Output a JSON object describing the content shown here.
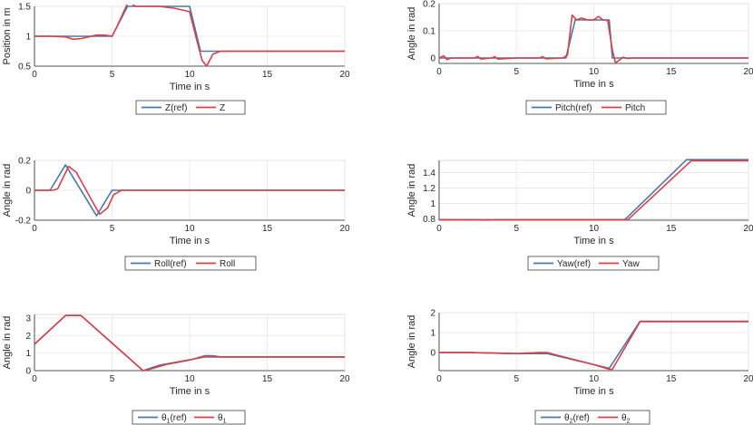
{
  "colors": {
    "ref": "#4a78a8",
    "actual": "#d9404a",
    "axis": "#262626",
    "grid": "#e6e6e6"
  },
  "chart_data": [
    {
      "type": "line",
      "xlabel": "Time in s",
      "ylabel": "Position in m",
      "xlim": [
        0,
        20
      ],
      "ylim": [
        0.5,
        1.5
      ],
      "xticks": [
        0,
        5,
        10,
        15,
        20
      ],
      "yticks": [
        0.5,
        1,
        1.5
      ],
      "xtick_labels": [
        "0",
        "5",
        "10",
        "15",
        "20"
      ],
      "ytick_labels": [
        "0.5",
        "1",
        "1.5"
      ],
      "series": [
        {
          "name": "Z(ref)",
          "legend": "Z(ref)",
          "sub": "",
          "x": [
            0,
            5,
            6,
            10,
            10.7,
            20
          ],
          "y": [
            1,
            1,
            1.5,
            1.5,
            0.75,
            0.75
          ]
        },
        {
          "name": "Z",
          "legend": "Z",
          "sub": "",
          "x": [
            0,
            1,
            2,
            2.5,
            3,
            4,
            4.5,
            5,
            5.3,
            6,
            6.2,
            6.5,
            7,
            8,
            9,
            10,
            10.4,
            10.8,
            11.1,
            11.5,
            12,
            20
          ],
          "y": [
            1,
            1,
            0.99,
            0.95,
            0.96,
            1.02,
            1.02,
            1,
            1.15,
            1.55,
            1.56,
            1.5,
            1.5,
            1.5,
            1.47,
            1.41,
            1.0,
            0.6,
            0.5,
            0.7,
            0.75,
            0.75
          ]
        }
      ]
    },
    {
      "type": "line",
      "xlabel": "Time in s",
      "ylabel": "Angle in rad",
      "xlim": [
        0,
        20
      ],
      "ylim": [
        -0.02,
        0.2
      ],
      "xticks": [
        0,
        5,
        10,
        15,
        20
      ],
      "yticks": [
        0,
        0.1,
        0.2
      ],
      "xtick_labels": [
        "0",
        "5",
        "10",
        "15",
        "20"
      ],
      "ytick_labels": [
        "0",
        "0.1",
        "0.2"
      ],
      "series": [
        {
          "name": "Pitch(ref)",
          "legend": "Pitch(ref)",
          "sub": "",
          "x": [
            0,
            8.2,
            8.8,
            11,
            11.2,
            20
          ],
          "y": [
            0,
            0,
            0.14,
            0.14,
            0,
            0
          ]
        },
        {
          "name": "Pitch",
          "legend": "Pitch",
          "sub": "",
          "x": [
            0,
            0.3,
            0.5,
            0.8,
            2.3,
            2.5,
            2.7,
            3.4,
            3.6,
            3.8,
            5,
            6.5,
            6.7,
            6.9,
            8,
            8.3,
            8.6,
            8.9,
            9.2,
            9.6,
            10,
            10.3,
            10.6,
            10.9,
            11.2,
            11.4,
            11.6,
            11.9,
            12.2,
            12.5,
            20
          ],
          "y": [
            0,
            0.008,
            -0.006,
            0,
            0,
            0.006,
            -0.004,
            0,
            0.005,
            -0.004,
            0,
            0,
            0.005,
            -0.003,
            0,
            0.01,
            0.158,
            0.14,
            0.147,
            0.14,
            0.14,
            0.153,
            0.14,
            0.138,
            0.03,
            -0.018,
            -0.01,
            0.003,
            -0.002,
            0,
            0
          ]
        }
      ]
    },
    {
      "type": "line",
      "xlabel": "Time in s",
      "ylabel": "Angle in rad",
      "xlim": [
        0,
        20
      ],
      "ylim": [
        -0.2,
        0.2
      ],
      "xticks": [
        0,
        5,
        10,
        15,
        20
      ],
      "yticks": [
        -0.2,
        0,
        0.2
      ],
      "xtick_labels": [
        "0",
        "5",
        "10",
        "15",
        "20"
      ],
      "ytick_labels": [
        "-0.2",
        "0",
        "0.2"
      ],
      "series": [
        {
          "name": "Roll(ref)",
          "legend": "Roll(ref)",
          "sub": "",
          "x": [
            0,
            1,
            2,
            4,
            5,
            20
          ],
          "y": [
            0,
            0,
            0.17,
            -0.17,
            0,
            0
          ]
        },
        {
          "name": "Roll",
          "legend": "Roll",
          "sub": "",
          "x": [
            0,
            1.2,
            1.5,
            2.2,
            2.7,
            3.6,
            4.2,
            4.7,
            5.1,
            5.6,
            20
          ],
          "y": [
            0,
            0,
            0.01,
            0.16,
            0.12,
            -0.05,
            -0.16,
            -0.12,
            -0.03,
            0,
            0
          ]
        }
      ]
    },
    {
      "type": "line",
      "xlabel": "Time in s",
      "ylabel": "Angle in rad",
      "xlim": [
        0,
        20
      ],
      "ylim": [
        0.78,
        1.56
      ],
      "xticks": [
        0,
        5,
        10,
        15,
        20
      ],
      "yticks": [
        0.8,
        1,
        1.2,
        1.4
      ],
      "xtick_labels": [
        "0",
        "5",
        "10",
        "15",
        "20"
      ],
      "ytick_labels": [
        "0.8",
        "1",
        "1.2",
        "1.4"
      ],
      "series": [
        {
          "name": "Yaw(ref)",
          "legend": "Yaw(ref)",
          "sub": "",
          "x": [
            0,
            12,
            16,
            20
          ],
          "y": [
            0.785,
            0.785,
            1.57,
            1.57
          ]
        },
        {
          "name": "Yaw",
          "legend": "Yaw",
          "sub": "",
          "x": [
            0,
            2,
            3,
            4,
            12.2,
            16.3,
            20
          ],
          "y": [
            0.785,
            0.785,
            0.782,
            0.785,
            0.785,
            1.555,
            1.555
          ]
        }
      ]
    },
    {
      "type": "line",
      "xlabel": "Time in s",
      "ylabel": "Angle in rad",
      "xlim": [
        0,
        20
      ],
      "ylim": [
        0,
        3.2
      ],
      "xticks": [
        0,
        5,
        10,
        15,
        20
      ],
      "yticks": [
        0,
        1,
        2,
        3
      ],
      "xtick_labels": [
        "0",
        "5",
        "10",
        "15",
        "20"
      ],
      "ytick_labels": [
        "0",
        "1",
        "2",
        "3"
      ],
      "series": [
        {
          "name": "theta1-ref",
          "legend": "θ",
          "sub": "1",
          "suffix": "(ref)",
          "x": [
            0,
            2,
            3,
            7,
            8,
            11,
            12,
            20
          ],
          "y": [
            1.5,
            3.14,
            3.14,
            0,
            0.3,
            0.78,
            0.78,
            0.78
          ]
        },
        {
          "name": "theta1",
          "legend": "θ",
          "sub": "1",
          "suffix": "",
          "x": [
            0,
            2,
            3,
            7,
            7.5,
            8.5,
            10,
            11,
            11.5,
            12,
            20
          ],
          "y": [
            1.5,
            3.14,
            3.14,
            0,
            0.1,
            0.35,
            0.6,
            0.85,
            0.85,
            0.78,
            0.78
          ]
        }
      ]
    },
    {
      "type": "line",
      "xlabel": "Time in s",
      "ylabel": "Angle in rad",
      "xlim": [
        0,
        20
      ],
      "ylim": [
        -0.9,
        2
      ],
      "xticks": [
        0,
        5,
        10,
        15,
        20
      ],
      "yticks": [
        0,
        1,
        2
      ],
      "xtick_labels": [
        "0",
        "5",
        "10",
        "15",
        "20"
      ],
      "ytick_labels": [
        "0",
        "1",
        "2"
      ],
      "series": [
        {
          "name": "theta2-ref",
          "legend": "θ",
          "sub": "2",
          "suffix": "(ref)",
          "x": [
            0,
            2,
            5,
            7,
            11,
            13,
            20
          ],
          "y": [
            0,
            0,
            -0.05,
            -0.05,
            -0.78,
            1.57,
            1.57
          ]
        },
        {
          "name": "theta2",
          "legend": "θ",
          "sub": "2",
          "suffix": "",
          "x": [
            0,
            2,
            5,
            6.5,
            7,
            8,
            10,
            11,
            11.2,
            13,
            20
          ],
          "y": [
            0,
            0,
            -0.05,
            0,
            0,
            -0.2,
            -0.6,
            -0.83,
            -0.83,
            1.55,
            1.55
          ]
        }
      ]
    }
  ]
}
